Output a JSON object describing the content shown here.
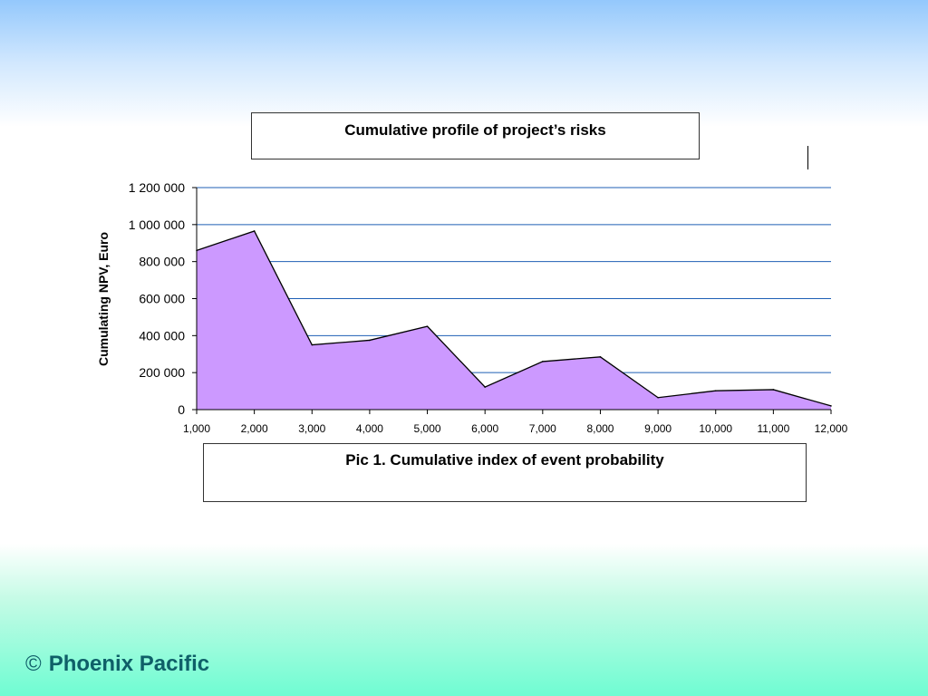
{
  "chart_data": {
    "type": "area",
    "title": "Cumulative profile of project’s risks",
    "caption": "Pic 1. Cumulative index of event probability",
    "xlabel": "",
    "ylabel": "Cumulating NPV, Euro",
    "categories": [
      "1,000",
      "2,000",
      "3,000",
      "4,000",
      "5,000",
      "6,000",
      "7,000",
      "8,000",
      "9,000",
      "10,000",
      "11,000",
      "12,000"
    ],
    "values": [
      860000,
      965000,
      350000,
      375000,
      450000,
      122000,
      260000,
      285000,
      65000,
      102000,
      108000,
      20000
    ],
    "yticks": [
      "0",
      "200 000",
      "400 000",
      "600 000",
      "800 000",
      "1 000 000",
      "1 200 000"
    ],
    "ylim": [
      0,
      1200000
    ],
    "grid": true,
    "fill_color": "#cc99ff",
    "line_color": "#000000",
    "grid_color": "#1f5fb5"
  },
  "footer": {
    "copyright_symbol": "©",
    "brand": "Phoenix Pacific"
  }
}
